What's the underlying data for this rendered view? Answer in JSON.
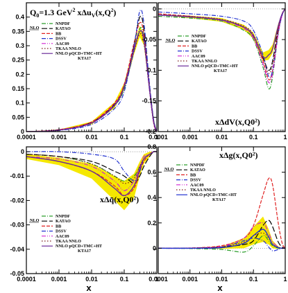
{
  "x_axis_label": "x",
  "chart_data": [
    {
      "type": "line",
      "title": "Q0=1.3 GeV² xΔuV(x,Q0²)",
      "title_prefix": "Q",
      "title_sub0": "0",
      "title_rest": "=1.3 GeV",
      "title_sup": "2",
      "title_func": " xΔu",
      "title_sub": "V",
      "title_args": "(x,Q",
      "title_sub2": "0",
      "title_sup2": "2",
      "title_end": ")",
      "ylim": [
        0,
        0.45
      ],
      "yticks": [
        "0",
        "0.05",
        "0.1",
        "0.15",
        "0.2",
        "0.25",
        "0.3",
        "0.35",
        "0.4"
      ],
      "ytick_values": [
        0,
        0.05,
        0.1,
        0.15,
        0.2,
        0.25,
        0.3,
        0.35,
        0.4
      ],
      "legend_position": "top-left",
      "nlo_label": "NLO",
      "x": [
        0.0001,
        0.001,
        0.01,
        0.05,
        0.1,
        0.2,
        0.3,
        0.4,
        0.6,
        0.8,
        1.0
      ],
      "series": [
        {
          "name": "NNPDF",
          "color": "#2a9d2a",
          "dash": "6,2,1,2",
          "values": [
            0.0,
            0.005,
            0.03,
            0.09,
            0.15,
            0.28,
            0.36,
            0.33,
            0.15,
            0.04,
            0
          ]
        },
        {
          "name": "KATAO",
          "color": "#000000",
          "dash": "8,3",
          "values": [
            0.0,
            0.006,
            0.033,
            0.095,
            0.16,
            0.3,
            0.4,
            0.36,
            0.16,
            0.04,
            0
          ]
        },
        {
          "name": "BB",
          "color": "#e02020",
          "dash": "5,2",
          "values": [
            0.0,
            0.007,
            0.034,
            0.1,
            0.165,
            0.31,
            0.38,
            0.34,
            0.15,
            0.03,
            0
          ]
        },
        {
          "name": "DSSV",
          "color": "#2030d0",
          "dash": "6,2,1,2",
          "values": [
            0.0,
            0.004,
            0.025,
            0.08,
            0.14,
            0.3,
            0.42,
            0.38,
            0.16,
            0.04,
            0
          ]
        },
        {
          "name": "AAC09",
          "color": "#d020d0",
          "dash": "6,2,1,2,1,2",
          "values": [
            0.0,
            0.006,
            0.031,
            0.095,
            0.158,
            0.29,
            0.35,
            0.32,
            0.14,
            0.03,
            0
          ]
        },
        {
          "name": "TKAA NNLO",
          "color": "#7a1a1a",
          "dash": "1.5,2.5",
          "values": [
            0.0,
            0.005,
            0.03,
            0.09,
            0.155,
            0.28,
            0.34,
            0.31,
            0.14,
            0.03,
            0
          ]
        },
        {
          "name": "NNLO pQCD+TMC+HT KTA17",
          "name_line1": "NNLO pQCD+TMC+HT",
          "name_line2": "KTA17",
          "color": "#6a2a9a",
          "dash": "",
          "band": true,
          "band_width": [
            0,
            0.002,
            0.005,
            0.01,
            0.012,
            0.015,
            0.02,
            0.018,
            0.01,
            0.004,
            0
          ],
          "values": [
            0.0,
            0.005,
            0.03,
            0.092,
            0.158,
            0.285,
            0.35,
            0.32,
            0.145,
            0.035,
            0
          ]
        }
      ]
    },
    {
      "type": "line",
      "title": "xΔdV(x,Q0²)",
      "ylim": [
        -0.2,
        0.01
      ],
      "yticks": [
        "0",
        "-0.05",
        "-0.1",
        "-0.15",
        "-0.2"
      ],
      "ytick_values": [
        0,
        -0.05,
        -0.1,
        -0.15,
        -0.2
      ],
      "legend_position": "top-right",
      "nlo_label": "NLO",
      "x": [
        0.0001,
        0.001,
        0.01,
        0.05,
        0.1,
        0.2,
        0.3,
        0.4,
        0.6,
        0.8,
        1.0
      ],
      "series": [
        {
          "name": "NNPDF",
          "color": "#2a9d2a",
          "dash": "6,2,1,2",
          "values": [
            -0.012,
            -0.015,
            -0.02,
            -0.035,
            -0.05,
            -0.095,
            -0.13,
            -0.11,
            -0.04,
            -0.01,
            0
          ]
        },
        {
          "name": "KATAO",
          "color": "#000000",
          "dash": "8,3",
          "values": [
            -0.01,
            -0.013,
            -0.018,
            -0.03,
            -0.045,
            -0.08,
            -0.1,
            -0.085,
            -0.03,
            -0.008,
            0
          ]
        },
        {
          "name": "BB",
          "color": "#e02020",
          "dash": "5,2",
          "values": [
            -0.008,
            -0.012,
            -0.018,
            -0.03,
            -0.045,
            -0.085,
            -0.115,
            -0.1,
            -0.035,
            -0.008,
            0
          ]
        },
        {
          "name": "DSSV",
          "color": "#2030d0",
          "dash": "6,2,1,2",
          "values": [
            -0.005,
            -0.008,
            -0.012,
            -0.02,
            -0.035,
            -0.075,
            -0.11,
            -0.1,
            -0.04,
            -0.01,
            0
          ]
        },
        {
          "name": "AAC09",
          "color": "#d020d0",
          "dash": "6,2,1,2,1,2",
          "values": [
            -0.01,
            -0.013,
            -0.019,
            -0.032,
            -0.048,
            -0.09,
            -0.12,
            -0.105,
            -0.04,
            -0.01,
            0
          ]
        },
        {
          "name": "TKAA NNLO",
          "color": "#7a1a1a",
          "dash": "1.5,2.5",
          "values": [
            -0.009,
            -0.012,
            -0.017,
            -0.028,
            -0.042,
            -0.08,
            -0.105,
            -0.09,
            -0.035,
            -0.008,
            0
          ]
        },
        {
          "name": "NNLO pQCD+TMC+HT KTA17",
          "name_line1": "NNLO pQCD+TMC+HT",
          "name_line2": "KTA17",
          "color": "#6a2a9a",
          "dash": "",
          "band": true,
          "band_width": [
            0,
            0.002,
            0.003,
            0.004,
            0.005,
            0.007,
            0.008,
            0.007,
            0.004,
            0.002,
            0
          ],
          "values": [
            -0.01,
            -0.013,
            -0.018,
            -0.03,
            -0.044,
            -0.078,
            -0.075,
            -0.065,
            -0.028,
            -0.008,
            0
          ]
        }
      ]
    },
    {
      "type": "line",
      "title": "xΔq̄(x,Q0²)",
      "ylim": [
        -0.05,
        0.002
      ],
      "yticks": [
        "0",
        "-0.01",
        "-0.02",
        "-0.03",
        "-0.04",
        "-0.05"
      ],
      "ytick_values": [
        0,
        -0.01,
        -0.02,
        -0.03,
        -0.04,
        -0.05
      ],
      "legend_position": "bottom-left",
      "nlo_label": "NLO",
      "x": [
        0.0001,
        0.001,
        0.01,
        0.05,
        0.1,
        0.2,
        0.3,
        0.4,
        0.6,
        0.8,
        1.0
      ],
      "series": [
        {
          "name": "NNPDF",
          "color": "#2a9d2a",
          "dash": "6,2,1,2",
          "values": [
            -0.001,
            -0.002,
            -0.005,
            -0.01,
            -0.012,
            -0.01,
            -0.006,
            -0.003,
            -0.001,
            0,
            0
          ]
        },
        {
          "name": "KATAO",
          "color": "#000000",
          "dash": "8,3",
          "values": [
            -0.001,
            -0.002,
            -0.004,
            -0.008,
            -0.01,
            -0.013,
            -0.01,
            -0.006,
            -0.002,
            0,
            0
          ]
        },
        {
          "name": "BB",
          "color": "#e02020",
          "dash": "5,2",
          "values": [
            -0.002,
            -0.004,
            -0.008,
            -0.014,
            -0.018,
            -0.015,
            -0.008,
            -0.004,
            -0.001,
            0,
            0
          ]
        },
        {
          "name": "DSSV",
          "color": "#2030d0",
          "dash": "6,2,1,2",
          "values": [
            0,
            0,
            -0.001,
            -0.003,
            -0.008,
            -0.012,
            -0.008,
            -0.003,
            -0.001,
            0,
            0
          ]
        },
        {
          "name": "AAC09",
          "color": "#d020d0",
          "dash": "6,2,1,2,1,2",
          "values": [
            -0.002,
            -0.003,
            -0.006,
            -0.012,
            -0.016,
            -0.012,
            -0.006,
            -0.002,
            -0.001,
            0,
            0
          ]
        },
        {
          "name": "TKAA NNLO",
          "color": "#7a1a1a",
          "dash": "1.5,2.5",
          "values": [
            -0.001,
            -0.002,
            -0.005,
            -0.01,
            -0.013,
            -0.011,
            -0.006,
            -0.003,
            -0.001,
            0,
            0
          ]
        },
        {
          "name": "NNLO pQCD+TMC+HT KTA17",
          "name_line1": "NNLO pQCD+TMC+HT",
          "name_line2": "KTA17",
          "color": "#6a2a9a",
          "dash": "",
          "band": true,
          "band_width": [
            0.001,
            0.0015,
            0.003,
            0.005,
            0.006,
            0.005,
            0.003,
            0.002,
            0.001,
            0,
            0
          ],
          "values": [
            -0.002,
            -0.004,
            -0.008,
            -0.015,
            -0.018,
            -0.014,
            -0.007,
            -0.003,
            -0.001,
            0,
            0
          ]
        }
      ]
    },
    {
      "type": "line",
      "title": "xΔg(x,Q0²)",
      "ylim": [
        -0.2,
        0.8
      ],
      "yticks": [
        "0",
        "0.2",
        "0.4",
        "0.6",
        "0.8"
      ],
      "ytick_values": [
        0,
        0.2,
        0.4,
        0.6,
        0.8
      ],
      "legend_position": "top-left",
      "nlo_label": "NLO",
      "x": [
        0.0001,
        0.001,
        0.01,
        0.05,
        0.1,
        0.2,
        0.3,
        0.4,
        0.6,
        0.8,
        1.0
      ],
      "series": [
        {
          "name": "NNPDF",
          "color": "#2a9d2a",
          "dash": "6,2,1,2",
          "values": [
            0,
            -0.002,
            -0.01,
            -0.03,
            0.02,
            0.1,
            0.06,
            0.02,
            0,
            0,
            0
          ]
        },
        {
          "name": "KATAO",
          "color": "#000000",
          "dash": "8,3",
          "values": [
            0,
            0.001,
            0.01,
            0.03,
            0.06,
            0.18,
            0.22,
            0.17,
            0.05,
            0.01,
            0
          ]
        },
        {
          "name": "BB",
          "color": "#e02020",
          "dash": "5,2",
          "values": [
            0,
            0.002,
            0.02,
            0.08,
            0.18,
            0.42,
            0.55,
            0.5,
            0.2,
            0.04,
            0
          ]
        },
        {
          "name": "DSSV",
          "color": "#2030d0",
          "dash": "6,2,1,2",
          "values": [
            0,
            0.001,
            0.01,
            0.06,
            0.08,
            0.06,
            0.01,
            -0.02,
            -0.01,
            0,
            0
          ]
        },
        {
          "name": "AAC09",
          "color": "#d020d0",
          "dash": "6,2,1,2,1,2",
          "values": [
            0,
            0.001,
            0.015,
            0.08,
            0.17,
            0.2,
            0.12,
            0.05,
            0.01,
            0,
            0
          ]
        },
        {
          "name": "TKAA NNLO",
          "color": "#7a1a1a",
          "dash": "1.5,2.5",
          "values": [
            0,
            0.001,
            0.01,
            0.05,
            0.1,
            0.12,
            0.08,
            0.03,
            0.01,
            0,
            0
          ]
        },
        {
          "name": "NNLO pQCD+TMC+HT KTA17",
          "name_line1": "NNLO pQCD+TMC+HT",
          "name_line2": "KTA17",
          "color": "#2030d0",
          "dash": "",
          "band": true,
          "band_width": [
            0,
            0.002,
            0.01,
            0.04,
            0.07,
            0.1,
            0.06,
            0.03,
            0.01,
            0,
            0
          ],
          "values": [
            0,
            0,
            0.005,
            0.04,
            0.1,
            0.15,
            0.09,
            0.03,
            0.005,
            0,
            0
          ]
        }
      ]
    }
  ],
  "xticks": [
    "0.0001",
    "0.001",
    "0.01",
    "0.1",
    "1"
  ],
  "xtick_values": [
    0.0001,
    0.001,
    0.01,
    0.1,
    1
  ],
  "band_color": "#f5e800",
  "ref_line_color": "#888888"
}
